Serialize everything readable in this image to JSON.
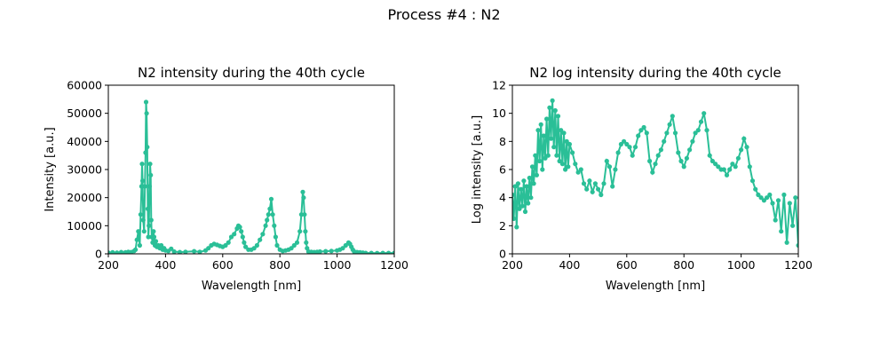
{
  "figure": {
    "suptitle": "Process #4 : N2"
  },
  "chart_data": [
    {
      "type": "line",
      "title": "N2 intensity during the 40th cycle",
      "xlabel": "Wavelength [nm]",
      "ylabel": "Intensity [a.u.]",
      "xlim": [
        200,
        1200
      ],
      "ylim": [
        0,
        60000
      ],
      "xticks": [
        200,
        400,
        600,
        800,
        1000,
        1200
      ],
      "yticks": [
        0,
        10000,
        20000,
        30000,
        40000,
        50000,
        60000
      ],
      "grid": false,
      "color": "#2abf97",
      "series": [
        {
          "x": [
            200,
            215,
            230,
            245,
            260,
            270,
            280,
            290,
            295,
            300,
            305,
            310,
            313,
            316,
            318,
            320,
            322,
            325,
            328,
            330,
            332,
            334,
            336,
            338,
            340,
            342,
            344,
            346,
            348,
            350,
            352,
            355,
            358,
            360,
            363,
            366,
            370,
            375,
            380,
            385,
            390,
            395,
            400,
            410,
            420,
            430,
            450,
            470,
            500,
            520,
            540,
            550,
            560,
            570,
            580,
            590,
            600,
            610,
            620,
            630,
            640,
            650,
            655,
            660,
            665,
            670,
            675,
            680,
            690,
            700,
            710,
            720,
            730,
            740,
            750,
            755,
            760,
            765,
            770,
            775,
            780,
            785,
            790,
            800,
            810,
            820,
            830,
            840,
            850,
            860,
            870,
            875,
            880,
            883,
            886,
            889,
            892,
            895,
            900,
            910,
            920,
            930,
            940,
            960,
            980,
            1000,
            1010,
            1020,
            1030,
            1040,
            1045,
            1050,
            1055,
            1060,
            1070,
            1080,
            1090,
            1100,
            1120,
            1140,
            1160,
            1180,
            1200
          ],
          "y": [
            400,
            500,
            400,
            600,
            500,
            700,
            600,
            1000,
            1500,
            5000,
            8000,
            3000,
            14000,
            24000,
            32000,
            26000,
            12000,
            8000,
            24000,
            36000,
            54000,
            50000,
            38000,
            16000,
            6000,
            10000,
            24000,
            32000,
            28000,
            12000,
            6000,
            4000,
            8000,
            6000,
            3000,
            4500,
            2500,
            3000,
            2000,
            3000,
            1500,
            2000,
            1200,
            1000,
            1800,
            800,
            600,
            700,
            900,
            700,
            1200,
            2000,
            3000,
            3500,
            3200,
            2800,
            2500,
            3000,
            4000,
            6000,
            7000,
            9000,
            10000,
            9500,
            8000,
            6000,
            4000,
            2500,
            1500,
            1500,
            2000,
            3000,
            5000,
            7000,
            10000,
            12000,
            14000,
            16000,
            19500,
            14000,
            10000,
            6000,
            3000,
            1500,
            1000,
            1200,
            1500,
            2000,
            3000,
            4000,
            8000,
            14000,
            22000,
            20000,
            14000,
            8000,
            4000,
            2000,
            800,
            700,
            600,
            700,
            800,
            900,
            1000,
            1200,
            1500,
            2000,
            3000,
            4000,
            3500,
            2500,
            1500,
            800,
            600,
            500,
            400,
            300,
            300,
            250,
            300,
            300,
            300
          ]
        }
      ]
    },
    {
      "type": "line",
      "title": "N2 log intensity during the 40th cycle",
      "xlabel": "Wavelength [nm]",
      "ylabel": "Log intensity [a.u.]",
      "xlim": [
        200,
        1200
      ],
      "ylim": [
        0,
        12
      ],
      "xticks": [
        200,
        400,
        600,
        800,
        1000,
        1200
      ],
      "yticks": [
        0,
        2,
        4,
        6,
        8,
        10,
        12
      ],
      "grid": false,
      "color": "#2abf97",
      "series": [
        {
          "x": [
            200,
            205,
            210,
            215,
            220,
            225,
            230,
            235,
            240,
            245,
            250,
            255,
            260,
            265,
            270,
            275,
            280,
            285,
            290,
            295,
            300,
            305,
            310,
            315,
            320,
            325,
            330,
            335,
            340,
            345,
            350,
            355,
            360,
            365,
            370,
            375,
            380,
            385,
            390,
            395,
            400,
            410,
            420,
            430,
            440,
            450,
            460,
            470,
            480,
            490,
            500,
            510,
            520,
            530,
            540,
            550,
            560,
            570,
            580,
            590,
            600,
            610,
            620,
            630,
            640,
            650,
            660,
            670,
            680,
            690,
            700,
            710,
            720,
            730,
            740,
            750,
            760,
            770,
            780,
            790,
            800,
            810,
            820,
            830,
            840,
            850,
            860,
            870,
            880,
            890,
            900,
            910,
            920,
            930,
            940,
            950,
            960,
            970,
            980,
            990,
            1000,
            1010,
            1020,
            1030,
            1040,
            1050,
            1060,
            1070,
            1080,
            1090,
            1100,
            1110,
            1120,
            1130,
            1140,
            1150,
            1160,
            1170,
            1180,
            1190,
            1200
          ],
          "y": [
            4.2,
            2.5,
            4.8,
            1.9,
            5.0,
            3.2,
            4.6,
            3.4,
            5.2,
            3.0,
            4.8,
            3.6,
            5.4,
            4.0,
            6.2,
            5.0,
            7.0,
            5.6,
            8.8,
            6.6,
            9.2,
            6.0,
            8.4,
            6.8,
            9.6,
            7.0,
            10.4,
            8.2,
            10.9,
            7.6,
            10.2,
            7.0,
            9.8,
            6.6,
            8.8,
            6.4,
            8.6,
            6.0,
            8.0,
            6.2,
            7.8,
            7.2,
            6.4,
            5.8,
            6.0,
            5.0,
            4.6,
            5.2,
            4.4,
            5.0,
            4.6,
            4.2,
            5.0,
            6.6,
            6.2,
            4.8,
            6.0,
            7.2,
            7.8,
            8.0,
            7.8,
            7.6,
            7.0,
            7.6,
            8.4,
            8.8,
            9.0,
            8.6,
            6.6,
            5.8,
            6.4,
            7.0,
            7.4,
            8.0,
            8.6,
            9.2,
            9.8,
            8.6,
            7.2,
            6.6,
            6.2,
            6.8,
            7.4,
            8.0,
            8.6,
            8.8,
            9.4,
            10.0,
            8.8,
            7.0,
            6.6,
            6.4,
            6.2,
            6.0,
            6.0,
            5.6,
            6.0,
            6.4,
            6.2,
            6.8,
            7.4,
            8.2,
            7.6,
            6.2,
            5.2,
            4.6,
            4.2,
            4.0,
            3.8,
            4.0,
            4.2,
            3.6,
            2.4,
            3.8,
            1.6,
            4.2,
            0.8,
            3.6,
            2.0,
            4.0,
            0.6
          ]
        }
      ]
    }
  ]
}
